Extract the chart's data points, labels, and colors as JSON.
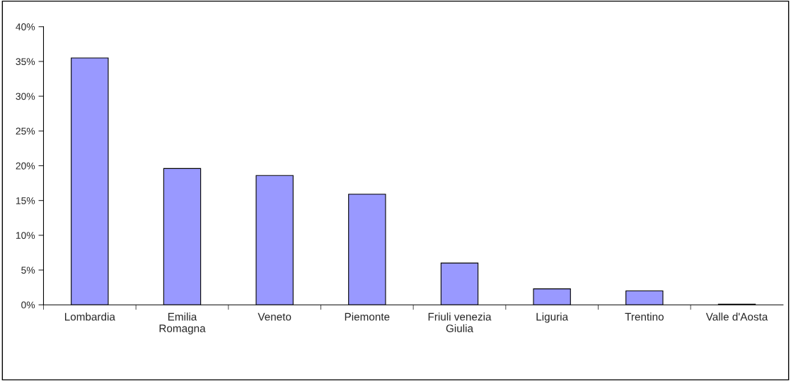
{
  "chart_data": {
    "type": "bar",
    "categories": [
      "Lombardia",
      "Emilia\nRomagna",
      "Veneto",
      "Piemonte",
      "Friuli venezia\nGiulia",
      "Liguria",
      "Trentino",
      "Valle d'Aosta"
    ],
    "values": [
      35.5,
      19.6,
      18.6,
      15.9,
      6.0,
      2.3,
      2.0,
      0.1
    ],
    "color": "#9999ff",
    "ylim": [
      0,
      40
    ],
    "yticks": [
      {
        "value": 0,
        "label": "0%"
      },
      {
        "value": 5,
        "label": "5%"
      },
      {
        "value": 10,
        "label": "10%"
      },
      {
        "value": 15,
        "label": "15%"
      },
      {
        "value": 20,
        "label": "20%"
      },
      {
        "value": 25,
        "label": "25%"
      },
      {
        "value": 30,
        "label": "30%"
      },
      {
        "value": 35,
        "label": "35%"
      },
      {
        "value": 40,
        "label": "40%"
      }
    ],
    "grid": false
  }
}
